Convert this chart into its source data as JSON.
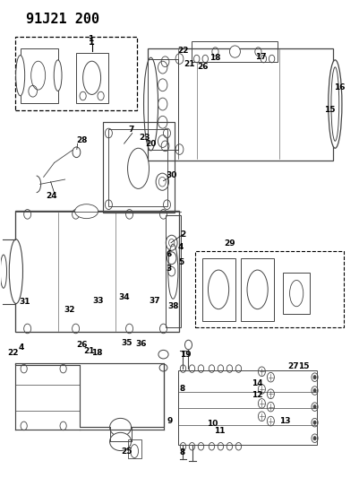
{
  "title": "91J21 200",
  "bg_color": "#ffffff",
  "title_fontsize": 11,
  "title_fontweight": "bold",
  "gray": "#444444",
  "black": "#000000"
}
